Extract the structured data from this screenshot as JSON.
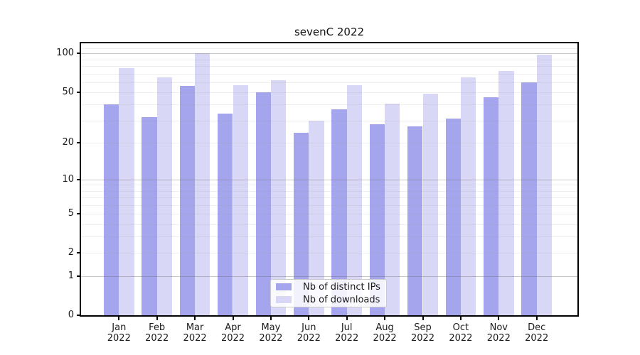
{
  "title": "sevenC 2022",
  "axes": {
    "months": [
      "Jan",
      "Feb",
      "Mar",
      "Apr",
      "May",
      "Jun",
      "Jul",
      "Aug",
      "Sep",
      "Oct",
      "Nov",
      "Dec"
    ],
    "year_label": "2022",
    "y_tick_labels": [
      "0",
      "1",
      "2",
      "5",
      "10",
      "20",
      "50",
      "100"
    ]
  },
  "legend": {
    "items": [
      {
        "label": "Nb of distinct IPs",
        "color": "#a5a5ee"
      },
      {
        "label": "Nb of downloads",
        "color": "#d8d8f6"
      }
    ]
  },
  "chart_data": {
    "type": "bar",
    "title": "sevenC 2022",
    "categories": [
      "Jan 2022",
      "Feb 2022",
      "Mar 2022",
      "Apr 2022",
      "May 2022",
      "Jun 2022",
      "Jul 2022",
      "Aug 2022",
      "Sep 2022",
      "Oct 2022",
      "Nov 2022",
      "Dec 2022"
    ],
    "series": [
      {
        "name": "Nb of distinct IPs",
        "color": "#a5a5ee",
        "values": [
          40,
          32,
          56,
          34,
          50,
          24,
          37,
          28,
          27,
          31,
          46,
          60
        ]
      },
      {
        "name": "Nb of downloads",
        "color": "#d8d8f6",
        "values": [
          77,
          65,
          100,
          57,
          62,
          30,
          57,
          41,
          49,
          65,
          73,
          98
        ]
      }
    ],
    "xlabel": "",
    "ylabel": "",
    "yscale": "symlog-log1p",
    "yticks": [
      0,
      1,
      2,
      5,
      10,
      20,
      50,
      100
    ],
    "ytick_minor": [
      2,
      3,
      4,
      5,
      6,
      7,
      8,
      9,
      20,
      30,
      40,
      50,
      60,
      70,
      80,
      90,
      110
    ],
    "ytick_major_grid": [
      1,
      10,
      100
    ],
    "ylim": [
      0,
      120
    ],
    "grid": true,
    "legend_position": "lower center"
  }
}
